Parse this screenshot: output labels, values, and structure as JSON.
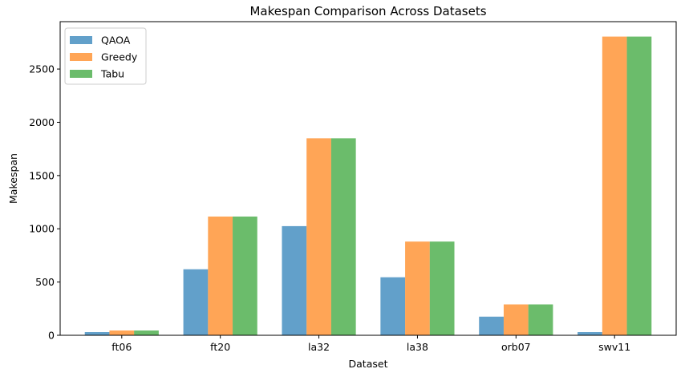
{
  "chart_data": {
    "type": "bar",
    "title": "Makespan Comparison Across Datasets",
    "xlabel": "Dataset",
    "ylabel": "Makespan",
    "categories": [
      "ft06",
      "ft20",
      "la32",
      "la38",
      "orb07",
      "swv11"
    ],
    "series": [
      {
        "name": "QAOA",
        "color": "#1f77b4",
        "values": [
          30,
          620,
          1025,
          545,
          175,
          30
        ]
      },
      {
        "name": "Greedy",
        "color": "#ff7f0e",
        "values": [
          45,
          1115,
          1850,
          880,
          290,
          2805
        ]
      },
      {
        "name": "Tabu",
        "color": "#2ca02c",
        "values": [
          45,
          1115,
          1850,
          880,
          290,
          2805
        ]
      }
    ],
    "ylim": [
      0,
      2945
    ],
    "yticks": [
      0,
      500,
      1000,
      1500,
      2000,
      2500
    ],
    "bar_opacity": 0.7,
    "legend_position": "upper-left",
    "grid": false
  }
}
